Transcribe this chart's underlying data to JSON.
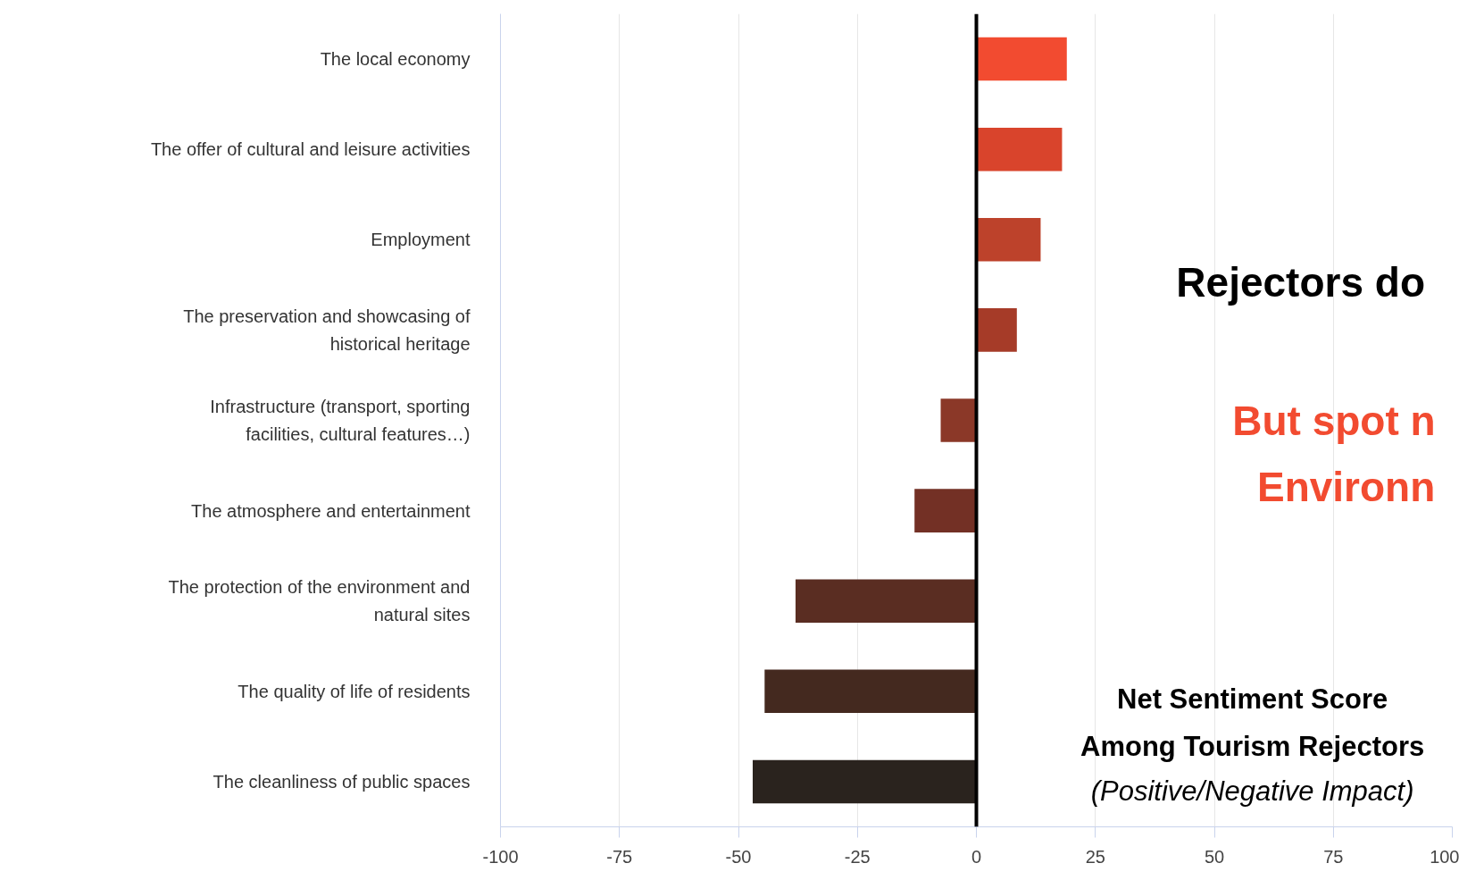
{
  "chart_data": {
    "type": "bar",
    "orientation": "horizontal",
    "title": "Net Sentiment Score\nAmong Tourism Rejectors",
    "subtitle": "(Positive/Negative Impact)",
    "annotations": [
      "Rejectors do",
      "But spot n",
      "Environn"
    ],
    "categories": [
      "The local economy",
      "The offer of cultural and leisure activities",
      "Employment",
      "The preservation and showcasing of\nhistorical heritage",
      "Infrastructure (transport, sporting\nfacilities, cultural features…)",
      "The atmosphere and entertainment",
      "The protection of the environment and\nnatural sites",
      "The quality of life of residents",
      "The cleanliness of public spaces"
    ],
    "values": [
      19,
      18,
      13.5,
      8.5,
      -7.5,
      -13,
      -38,
      -44.5,
      -47
    ],
    "colors": [
      "#f24b30",
      "#d9442c",
      "#bd422b",
      "#a63b28",
      "#8b3828",
      "#733025",
      "#5a2d22",
      "#44291f",
      "#2a231e"
    ],
    "xlim": [
      -100,
      100
    ],
    "xticks": [
      -100,
      -75,
      -50,
      -25,
      0,
      25,
      50,
      75,
      100
    ],
    "grid": "x",
    "ref_lines": [
      {
        "axis": "x",
        "value": 0,
        "color": "#000000"
      }
    ]
  }
}
